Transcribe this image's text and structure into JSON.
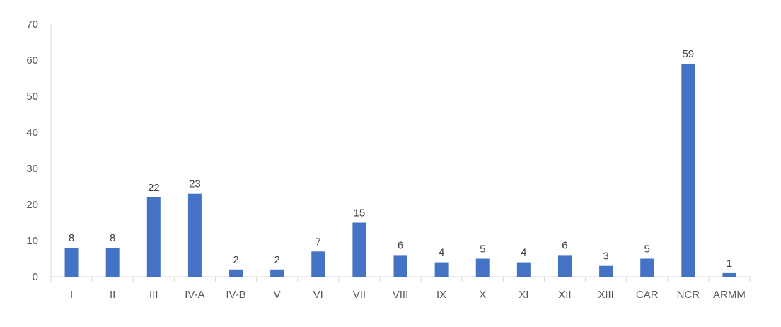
{
  "chart_data": {
    "type": "bar",
    "categories": [
      "I",
      "II",
      "III",
      "IV-A",
      "IV-B",
      "V",
      "VI",
      "VII",
      "VIII",
      "IX",
      "X",
      "XI",
      "XII",
      "XIII",
      "CAR",
      "NCR",
      "ARMM"
    ],
    "values": [
      8,
      8,
      22,
      23,
      2,
      2,
      7,
      15,
      6,
      4,
      5,
      4,
      6,
      3,
      5,
      59,
      1
    ],
    "data_labels": [
      "8",
      "8",
      "22",
      "23",
      "2",
      "2",
      "7",
      "15",
      "6",
      "4",
      "5",
      "4",
      "6",
      "3",
      "5",
      "59",
      "1"
    ],
    "y_ticks": [
      0,
      10,
      20,
      30,
      40,
      50,
      60,
      70
    ],
    "ylim": [
      0,
      70
    ],
    "grid": false,
    "legend": "none",
    "title": "",
    "xlabel": "",
    "ylabel": "",
    "colors": {
      "bar": "#4472C4",
      "axis": "#D9D9D9",
      "tick_text": "#595959",
      "label_text": "#404040"
    }
  }
}
